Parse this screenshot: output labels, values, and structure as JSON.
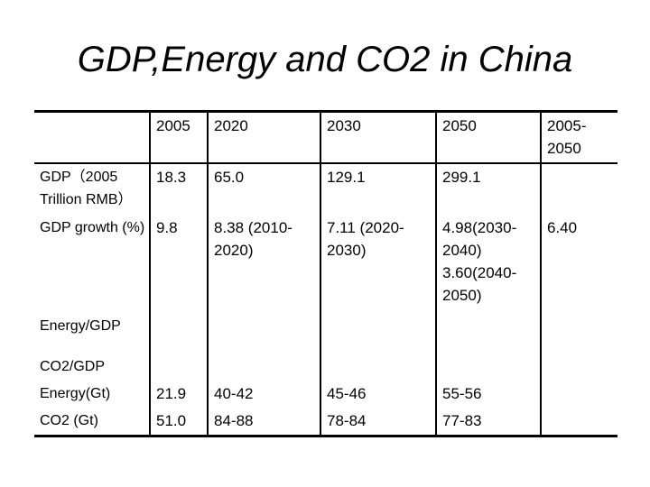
{
  "title": "GDP,Energy and CO2 in China",
  "table": {
    "headers": [
      "",
      "2005",
      "2020",
      "2030",
      "2050",
      "2005-\n2050"
    ],
    "rows": [
      [
        "GDP（2005 Trillion RMB）",
        "18.3",
        "65.0",
        "129.1",
        "299.1",
        ""
      ],
      [
        "GDP growth (%)",
        "9.8",
        "8.38 (2010-2020)",
        "7.11 (2020-2030)",
        "4.98(2030-2040) 3.60(2040-2050)",
        "6.40"
      ],
      [
        "Energy/GDP",
        "",
        "",
        "",
        "",
        ""
      ],
      [
        "CO2/GDP",
        "",
        "",
        "",
        "",
        ""
      ],
      [
        "Energy(Gt)",
        "21.9",
        "40-42",
        "45-46",
        "55-56",
        ""
      ],
      [
        "CO2 (Gt)",
        "51.0",
        "84-88",
        "78-84",
        "77-83",
        ""
      ]
    ]
  }
}
